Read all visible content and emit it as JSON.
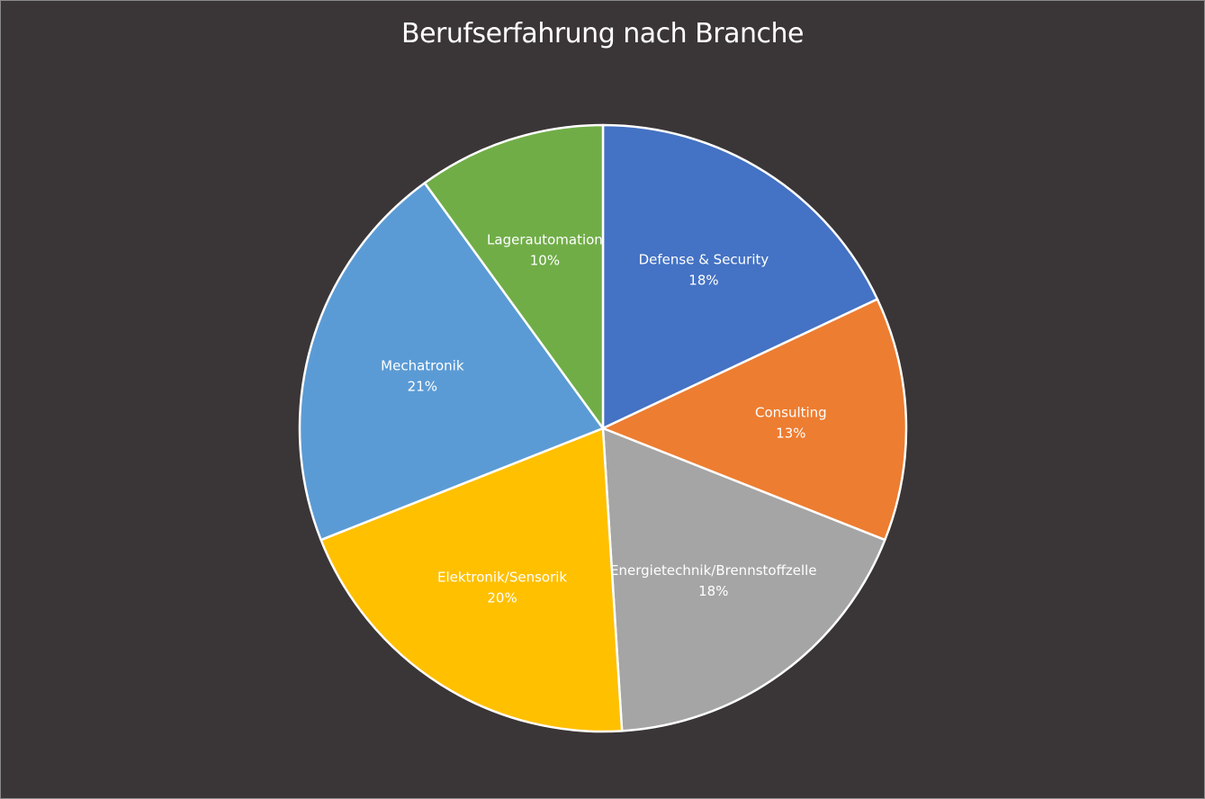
{
  "chart_data": {
    "type": "pie",
    "title": "Berufserfahrung nach Branche",
    "categories": [
      "Defense & Security",
      "Consulting",
      "Energietechnik/Brennstoffzelle",
      "Elektronik/Sensorik",
      "Mechatronik",
      "Lagerautomation"
    ],
    "values": [
      18,
      13,
      18,
      20,
      21,
      10
    ],
    "value_labels": [
      "18%",
      "13%",
      "18%",
      "20%",
      "21%",
      "10%"
    ],
    "colors": [
      "#4472c4",
      "#ed7d31",
      "#a5a5a5",
      "#ffc000",
      "#5b9bd5",
      "#70ad47"
    ],
    "start_angle": "12 o'clock",
    "direction": "clockwise",
    "legend": "none",
    "data_labels": "category and percent inside slices"
  }
}
